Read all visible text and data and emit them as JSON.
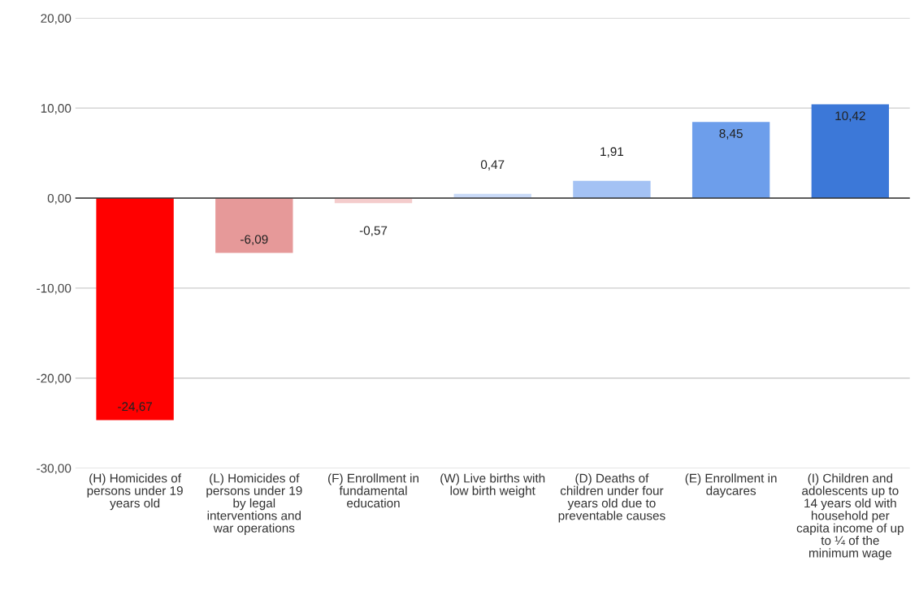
{
  "chart_data": {
    "type": "bar",
    "categories": [
      "(H) Homicides of persons under 19 years old",
      "(L) Homicides of persons under 19 by legal interventions and war operations",
      "(F) Enrollment in fundamental education",
      "(W) Live births with low birth weight",
      "(D) Deaths of children under four years old due to preventable causes",
      "(E) Enrollment in daycares",
      "(I) Children and adolescents up to 14 years old with household per capita income of up to ¼ of the minimum wage"
    ],
    "values": [
      -24.67,
      -6.09,
      -0.57,
      0.47,
      1.91,
      8.45,
      10.42
    ],
    "value_labels": [
      "-24,67",
      "-6,09",
      "-0,57",
      "0,47",
      "1,91",
      "8,45",
      "10,42"
    ],
    "colors": [
      "#ff0000",
      "#e69999",
      "#f4cccc",
      "#c9daf8",
      "#a4c2f4",
      "#6d9eeb",
      "#3c78d8"
    ],
    "ylim": [
      -30,
      20
    ],
    "yticks": [
      {
        "value": -30,
        "label": "-30,00"
      },
      {
        "value": -20,
        "label": "-20,00"
      },
      {
        "value": -10,
        "label": "-10,00"
      },
      {
        "value": 0,
        "label": "0,00"
      },
      {
        "value": 10,
        "label": "10,00"
      },
      {
        "value": 20,
        "label": "20,00"
      }
    ],
    "grid": "y"
  }
}
